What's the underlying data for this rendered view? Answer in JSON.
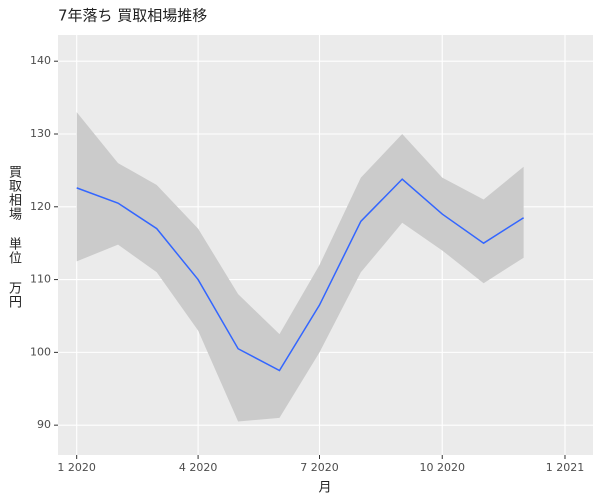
{
  "chart_data": {
    "type": "line",
    "title": "7年落ち 買取相場推移",
    "x_label": "月",
    "y_label": "買取相場 単位 万円",
    "x": [
      "2020-01",
      "2020-02",
      "2020-03",
      "2020-04",
      "2020-05",
      "2020-06",
      "2020-07",
      "2020-08",
      "2020-09",
      "2020-10",
      "2020-11",
      "2020-12"
    ],
    "values": [
      122.6,
      120.5,
      117,
      110,
      100.5,
      97.5,
      106.5,
      118,
      123.8,
      119,
      115,
      118.5
    ],
    "color": "#3366ff",
    "ci_lower": [
      112.5,
      114.8,
      111,
      103,
      90.5,
      91,
      100,
      111,
      117.8,
      114,
      109.5,
      113
    ],
    "ci_upper": [
      133,
      126,
      123,
      117,
      108,
      102.5,
      112,
      124,
      130,
      124,
      121,
      125.5
    ],
    "ci_color": "#cbcbcb",
    "xlim": [
      "2019-12-18",
      "2021-01-22"
    ],
    "xticks": [
      {
        "value": "2020-01",
        "label": "1 2020"
      },
      {
        "value": "2020-04",
        "label": "4 2020"
      },
      {
        "value": "2020-07",
        "label": "7 2020"
      },
      {
        "value": "2020-10",
        "label": "10 2020"
      },
      {
        "value": "2021-01",
        "label": "1 2021"
      }
    ],
    "ylim": [
      85.9,
      143.6
    ],
    "yticks": [
      90,
      100,
      110,
      120,
      130,
      140
    ],
    "grid": true
  }
}
